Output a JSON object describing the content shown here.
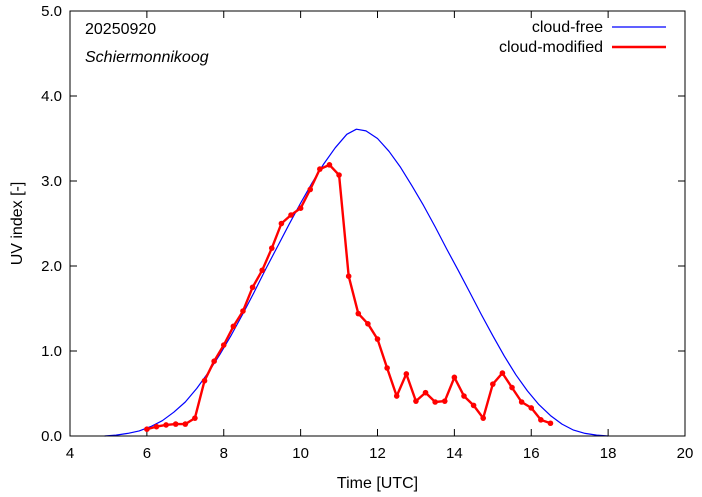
{
  "chart_data": {
    "type": "line",
    "xlabel": "Time  [UTC]",
    "ylabel": "UV index  [-]",
    "xlim": [
      4,
      20
    ],
    "ylim": [
      0.0,
      5.0
    ],
    "xticks": [
      "4",
      "6",
      "8",
      "10",
      "12",
      "14",
      "16",
      "18",
      "20"
    ],
    "yticks": [
      "0.0",
      "1.0",
      "2.0",
      "3.0",
      "4.0",
      "5.0"
    ],
    "annotations": [
      "20250920",
      "Schiermonnikoog"
    ],
    "legend_position": "top-right",
    "series": [
      {
        "name": "cloud-free",
        "color": "#0000ff",
        "style": "line",
        "x": [
          4.9,
          5.2,
          5.5,
          5.8,
          6.1,
          6.4,
          6.7,
          7.0,
          7.3,
          7.6,
          7.9,
          8.2,
          8.5,
          8.8,
          9.1,
          9.4,
          9.7,
          10.0,
          10.3,
          10.6,
          10.9,
          11.2,
          11.45,
          11.7,
          12.0,
          12.3,
          12.6,
          12.9,
          13.2,
          13.5,
          13.8,
          14.1,
          14.4,
          14.7,
          15.0,
          15.3,
          15.6,
          15.9,
          16.2,
          16.5,
          16.8,
          17.1,
          17.4,
          17.7,
          18.0
        ],
        "y": [
          0.0,
          0.01,
          0.03,
          0.06,
          0.11,
          0.18,
          0.28,
          0.4,
          0.56,
          0.75,
          0.96,
          1.19,
          1.44,
          1.7,
          1.97,
          2.23,
          2.49,
          2.74,
          2.98,
          3.2,
          3.39,
          3.55,
          3.61,
          3.59,
          3.5,
          3.35,
          3.16,
          2.94,
          2.71,
          2.46,
          2.2,
          1.95,
          1.69,
          1.43,
          1.18,
          0.94,
          0.72,
          0.53,
          0.37,
          0.24,
          0.14,
          0.07,
          0.03,
          0.01,
          0.0
        ]
      },
      {
        "name": "cloud-modified",
        "color": "#ff0000",
        "style": "line-points",
        "x": [
          6.0,
          6.25,
          6.5,
          6.75,
          7.0,
          7.25,
          7.5,
          7.75,
          8.0,
          8.25,
          8.5,
          8.75,
          9.0,
          9.25,
          9.5,
          9.75,
          10.0,
          10.25,
          10.5,
          10.75,
          11.0,
          11.25,
          11.5,
          11.75,
          12.0,
          12.25,
          12.5,
          12.75,
          13.0,
          13.25,
          13.5,
          13.75,
          14.0,
          14.25,
          14.5,
          14.75,
          15.0,
          15.25,
          15.5,
          15.75,
          16.0,
          16.25,
          16.5
        ],
        "y": [
          0.08,
          0.11,
          0.13,
          0.14,
          0.14,
          0.21,
          0.65,
          0.88,
          1.07,
          1.29,
          1.47,
          1.75,
          1.95,
          2.21,
          2.5,
          2.6,
          2.68,
          2.9,
          3.14,
          3.19,
          3.07,
          1.88,
          1.44,
          1.32,
          1.14,
          0.8,
          0.47,
          0.73,
          0.41,
          0.51,
          0.4,
          0.41,
          0.69,
          0.47,
          0.36,
          0.21,
          0.61,
          0.74,
          0.57,
          0.4,
          0.33,
          0.19,
          0.15
        ]
      }
    ]
  }
}
